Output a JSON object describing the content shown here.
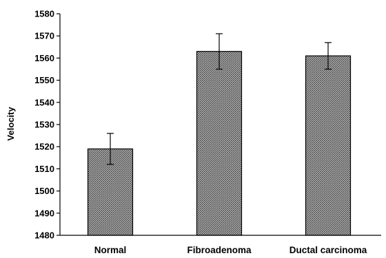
{
  "chart_data": {
    "type": "bar",
    "title": "",
    "xlabel": "",
    "ylabel": "Velocity",
    "categories": [
      "Normal",
      "Fibroadenoma",
      "Ductal carcinoma"
    ],
    "values": [
      1519,
      1563,
      1561
    ],
    "error_upper": [
      1526,
      1571,
      1567
    ],
    "error_lower": [
      1512,
      1555,
      1555
    ],
    "ylim": [
      1480,
      1580
    ],
    "yticks": [
      1480,
      1490,
      1500,
      1510,
      1520,
      1530,
      1540,
      1550,
      1560,
      1570,
      1580
    ],
    "grid": false,
    "legend": "none",
    "bar_fill": "crosshatch"
  }
}
